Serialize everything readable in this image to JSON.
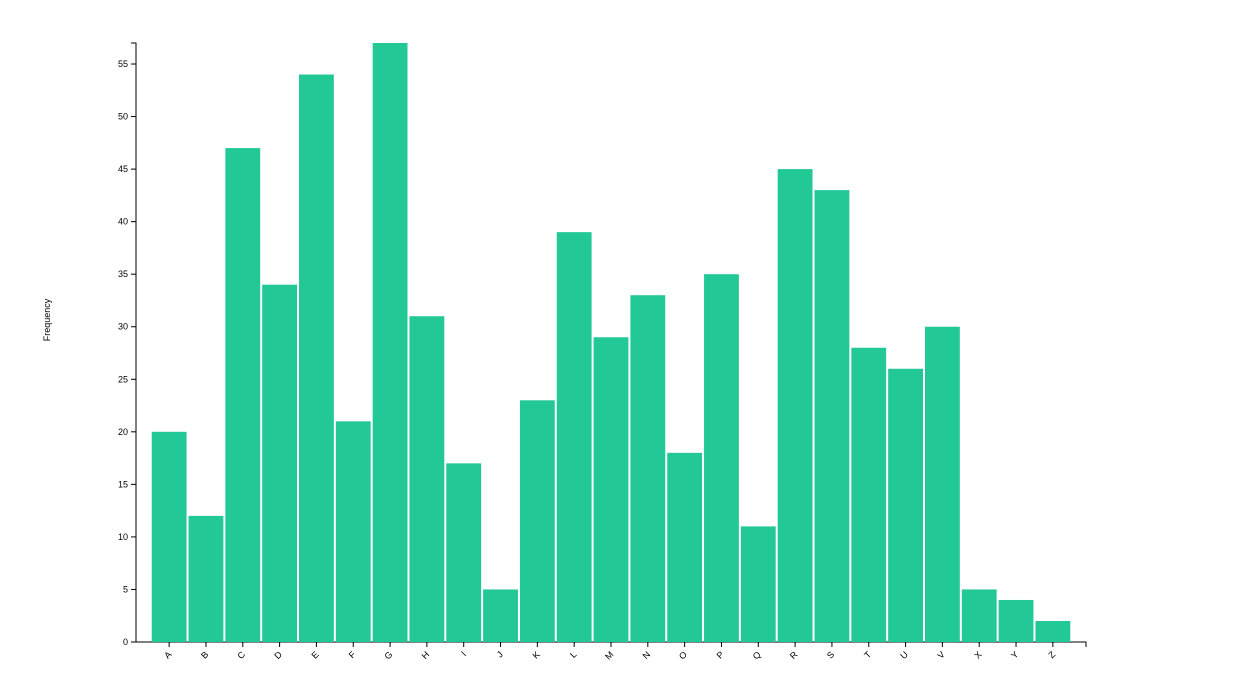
{
  "chart_data": {
    "type": "bar",
    "y_label": "Frequency",
    "categories": [
      "A",
      "B",
      "C",
      "D",
      "E",
      "F",
      "G",
      "H",
      "I",
      "J",
      "K",
      "L",
      "M",
      "N",
      "O",
      "P",
      "Q",
      "R",
      "S",
      "T",
      "U",
      "V",
      "X",
      "Y",
      "Z"
    ],
    "values": [
      20,
      12,
      47,
      34,
      54,
      21,
      57,
      31,
      17,
      5,
      23,
      39,
      29,
      33,
      18,
      35,
      11,
      45,
      43,
      28,
      26,
      30,
      5,
      4,
      2
    ],
    "color": "#22c896",
    "ylim": [
      0,
      57
    ],
    "yticks": [
      0,
      5,
      10,
      15,
      20,
      25,
      30,
      35,
      40,
      45,
      50,
      55
    ]
  }
}
